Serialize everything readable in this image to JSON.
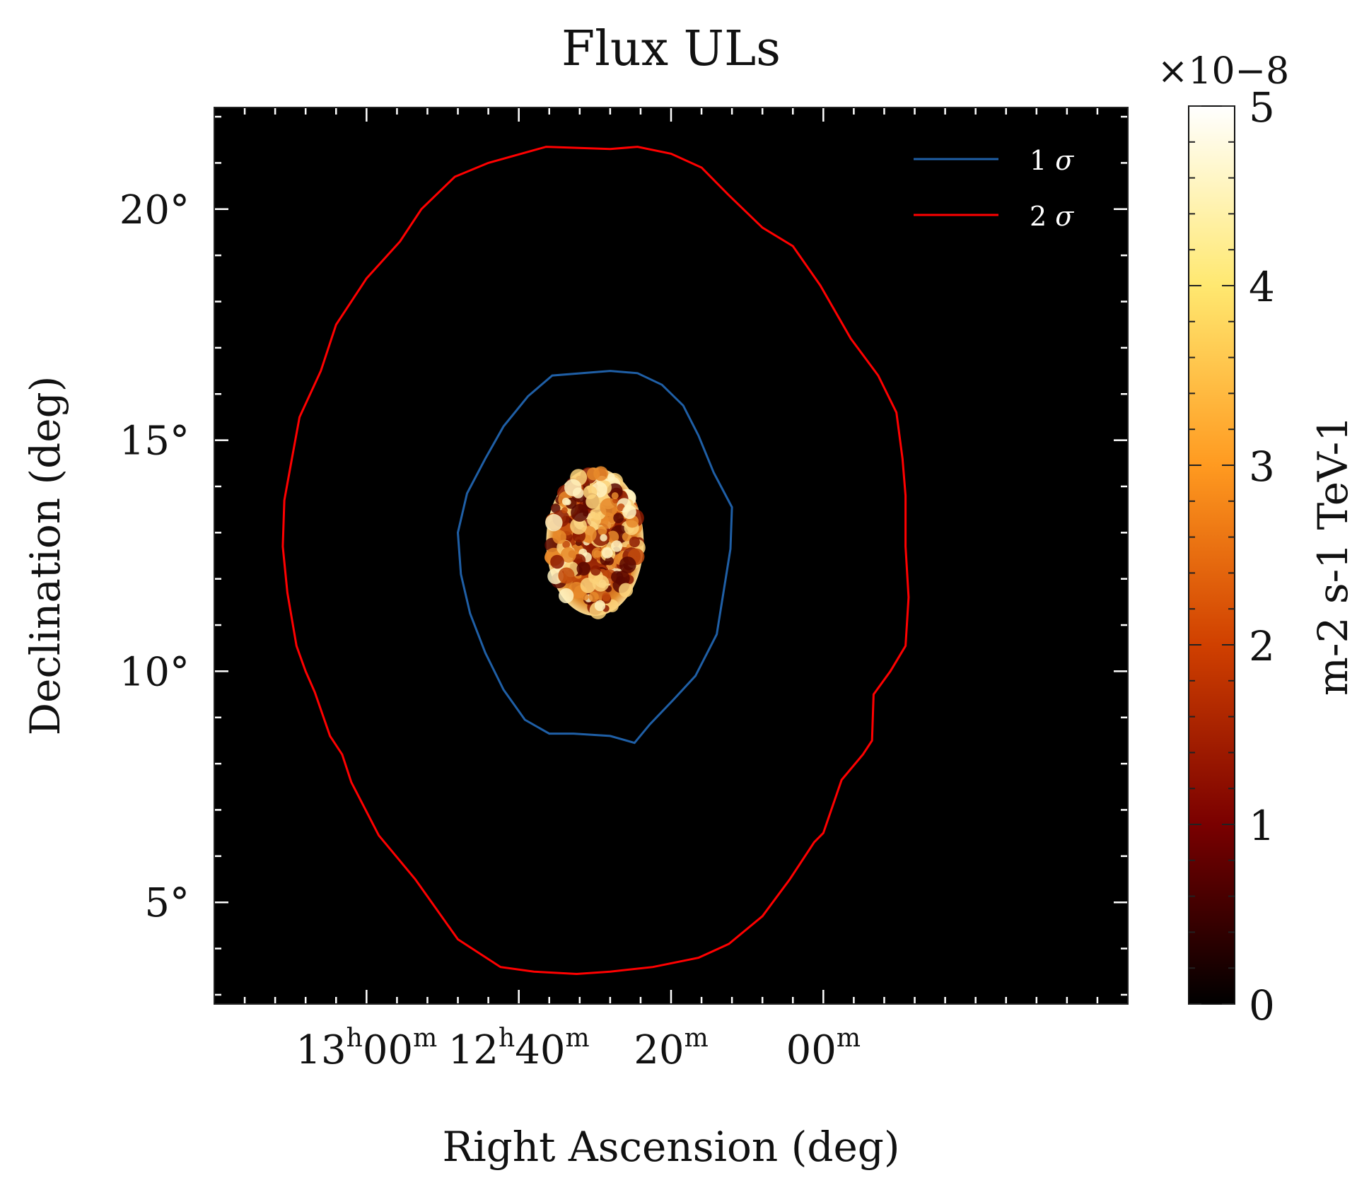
{
  "chart_data": {
    "type": "heatmap",
    "title": "Flux ULs",
    "xlabel": "Right Ascension (deg)",
    "ylabel": "Declination (deg)",
    "xlim": [
      200.0,
      170.0
    ],
    "ylim": [
      2.8,
      22.2
    ],
    "x_ticks": [
      {
        "value": 195.0,
        "h": "13",
        "m": "00",
        "label": "13h00m"
      },
      {
        "value": 190.0,
        "h": "12",
        "m": "40",
        "label": "12h40m"
      },
      {
        "value": 185.0,
        "h": "",
        "m": "20",
        "label": "20m"
      },
      {
        "value": 180.0,
        "h": "",
        "m": "00",
        "label": "00m"
      }
    ],
    "y_ticks": [
      {
        "value": 20,
        "label": "20°"
      },
      {
        "value": 15,
        "label": "15°"
      },
      {
        "value": 10,
        "label": "10°"
      },
      {
        "value": 5,
        "label": "5°"
      }
    ],
    "colorbar": {
      "label": "m-2 s-1 TeV-1",
      "min": 0,
      "max": 5,
      "ticks": [
        "0",
        "1",
        "2",
        "3",
        "4",
        "5"
      ],
      "multiplier": "×10−8",
      "colormap": "afmhot",
      "colors": [
        "#000000",
        "#7a0000",
        "#d04000",
        "#ff9a20",
        "#ffe870",
        "#ffffff"
      ]
    },
    "heatmap_region": {
      "center_ra": 187.5,
      "center_dec": 12.8,
      "radius_deg": 1.6,
      "typical_value": 1.8
    },
    "legend": {
      "placement": "top-right",
      "entries": [
        {
          "label": "1",
          "symbol": "σ",
          "color": "#1f5fa6"
        },
        {
          "label": "2",
          "symbol": "σ",
          "color": "#ff0000"
        }
      ]
    },
    "series": [
      {
        "name": "1 σ",
        "color": "#1f5fa6",
        "points": [
          [
            187.0,
            16.5
          ],
          [
            186.1,
            16.45
          ],
          [
            185.3,
            16.2
          ],
          [
            184.6,
            15.75
          ],
          [
            184.1,
            15.1
          ],
          [
            183.6,
            14.3
          ],
          [
            183.0,
            13.55
          ],
          [
            183.05,
            12.65
          ],
          [
            183.5,
            10.8
          ],
          [
            184.2,
            9.9
          ],
          [
            184.9,
            9.4
          ],
          [
            185.7,
            8.85
          ],
          [
            186.2,
            8.45
          ],
          [
            187.0,
            8.6
          ],
          [
            188.2,
            8.65
          ],
          [
            189.0,
            8.65
          ],
          [
            189.8,
            8.95
          ],
          [
            190.5,
            9.6
          ],
          [
            191.1,
            10.4
          ],
          [
            191.6,
            11.25
          ],
          [
            191.9,
            12.1
          ],
          [
            192.0,
            13.0
          ],
          [
            191.7,
            13.85
          ],
          [
            191.1,
            14.6
          ],
          [
            190.5,
            15.3
          ],
          [
            189.7,
            15.95
          ],
          [
            188.9,
            16.4
          ]
        ]
      },
      {
        "name": "2 σ",
        "color": "#ff0000",
        "points": [
          [
            187.0,
            21.3
          ],
          [
            186.1,
            21.35
          ],
          [
            185.0,
            21.2
          ],
          [
            184.0,
            20.9
          ],
          [
            183.1,
            20.3
          ],
          [
            182.0,
            19.6
          ],
          [
            181.0,
            19.2
          ],
          [
            180.1,
            18.35
          ],
          [
            179.1,
            17.2
          ],
          [
            178.2,
            16.4
          ],
          [
            177.6,
            15.6
          ],
          [
            177.4,
            14.6
          ],
          [
            177.3,
            13.8
          ],
          [
            177.3,
            12.7
          ],
          [
            177.2,
            11.6
          ],
          [
            177.3,
            10.55
          ],
          [
            177.8,
            10.0
          ],
          [
            178.35,
            9.5
          ],
          [
            178.4,
            8.5
          ],
          [
            178.7,
            8.2
          ],
          [
            179.4,
            7.65
          ],
          [
            180.0,
            6.5
          ],
          [
            180.3,
            6.3
          ],
          [
            181.1,
            5.5
          ],
          [
            182.0,
            4.7
          ],
          [
            183.1,
            4.1
          ],
          [
            184.1,
            3.8
          ],
          [
            185.6,
            3.6
          ],
          [
            187.0,
            3.5
          ],
          [
            188.1,
            3.45
          ],
          [
            189.5,
            3.5
          ],
          [
            190.6,
            3.6
          ],
          [
            192.0,
            4.2
          ],
          [
            193.4,
            5.5
          ],
          [
            194.6,
            6.45
          ],
          [
            195.5,
            7.6
          ],
          [
            195.8,
            8.2
          ],
          [
            196.2,
            8.6
          ],
          [
            196.7,
            9.55
          ],
          [
            197.0,
            10.0
          ],
          [
            197.3,
            10.55
          ],
          [
            197.6,
            11.7
          ],
          [
            197.75,
            12.7
          ],
          [
            197.7,
            13.7
          ],
          [
            197.45,
            14.6
          ],
          [
            197.2,
            15.5
          ],
          [
            196.5,
            16.5
          ],
          [
            196.0,
            17.5
          ],
          [
            195.0,
            18.5
          ],
          [
            193.9,
            19.3
          ],
          [
            193.2,
            20.0
          ],
          [
            192.1,
            20.7
          ],
          [
            191.0,
            21.0
          ],
          [
            189.1,
            21.35
          ]
        ]
      }
    ]
  }
}
